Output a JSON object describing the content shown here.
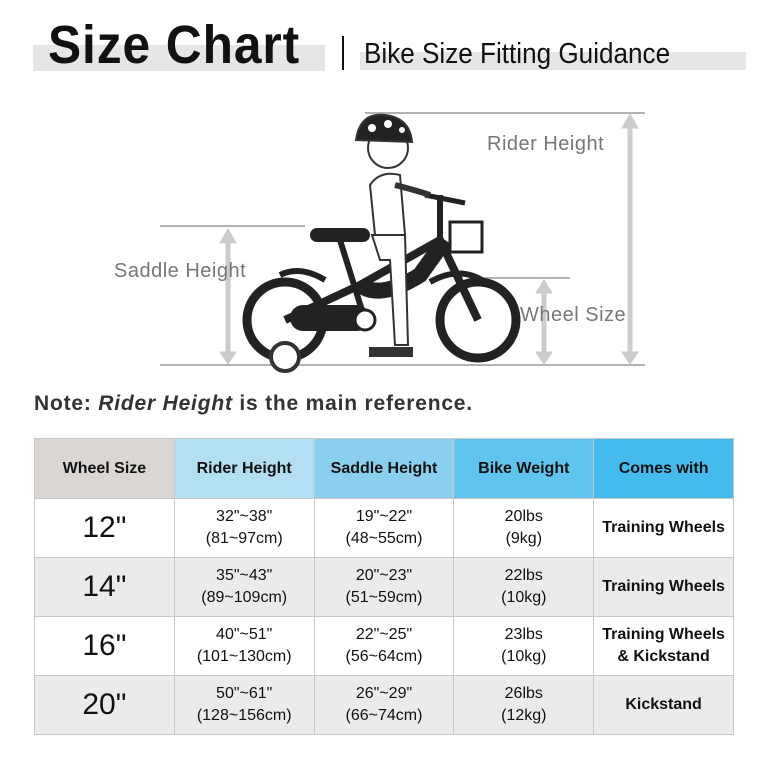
{
  "header": {
    "title": "Size Chart",
    "subtitle": "Bike Size Fitting Guidance"
  },
  "diagram": {
    "rider_height": "Rider Height",
    "saddle_height": "Saddle Height",
    "wheel_size": "Wheel Size"
  },
  "note": {
    "prefix": "Note: ",
    "emphasis": "Rider Height",
    "suffix": " is the main reference."
  },
  "table": {
    "header_colors": [
      "#d9d6d3",
      "#b3dff2",
      "#8ad0ee",
      "#5fc5ee",
      "#44bbec"
    ],
    "headers": [
      "Wheel Size",
      "Rider Height",
      "Saddle Height",
      "Bike Weight",
      "Comes with"
    ],
    "rows": [
      {
        "wheel": "12\"",
        "rider_in": "32\"~38\"",
        "rider_cm": "(81~97cm)",
        "saddle_in": "19\"~22\"",
        "saddle_cm": "(48~55cm)",
        "weight_lbs": "20lbs",
        "weight_kg": "(9kg)",
        "comes1": "Training Wheels",
        "comes2": ""
      },
      {
        "wheel": "14\"",
        "rider_in": "35\"~43\"",
        "rider_cm": "(89~109cm)",
        "saddle_in": "20\"~23\"",
        "saddle_cm": "(51~59cm)",
        "weight_lbs": "22lbs",
        "weight_kg": "(10kg)",
        "comes1": "Training Wheels",
        "comes2": ""
      },
      {
        "wheel": "16\"",
        "rider_in": "40\"~51\"",
        "rider_cm": "(101~130cm)",
        "saddle_in": "22\"~25\"",
        "saddle_cm": "(56~64cm)",
        "weight_lbs": "23lbs",
        "weight_kg": "(10kg)",
        "comes1": "Training Wheels",
        "comes2": "& Kickstand"
      },
      {
        "wheel": "20\"",
        "rider_in": "50\"~61\"",
        "rider_cm": "(128~156cm)",
        "saddle_in": "26\"~29\"",
        "saddle_cm": "(66~74cm)",
        "weight_lbs": "26lbs",
        "weight_kg": "(12kg)",
        "comes1": "Kickstand",
        "comes2": ""
      }
    ]
  }
}
